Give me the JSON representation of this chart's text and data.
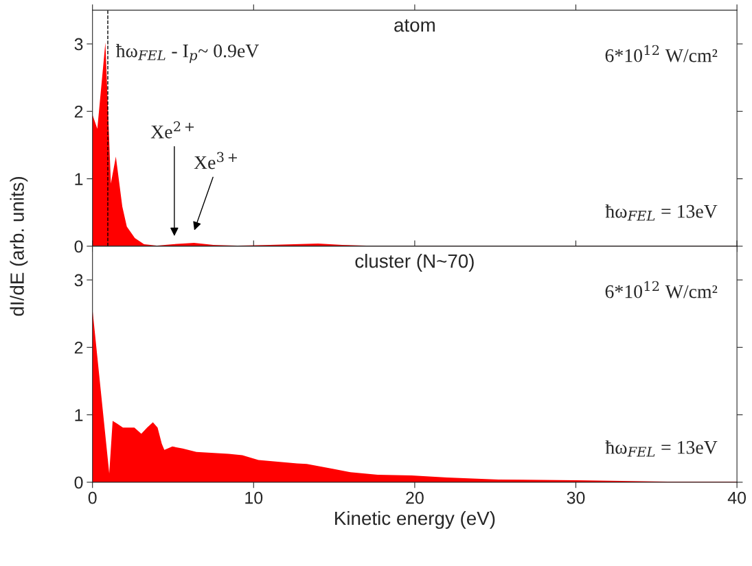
{
  "chart_data": [
    {
      "type": "area",
      "title": "atom",
      "ylabel": "dI/dE (arb. units)",
      "xlim": [
        0,
        40
      ],
      "xticks": [
        0,
        10,
        20,
        30,
        40
      ],
      "ylim": [
        0,
        3.5
      ],
      "yticks": [
        0,
        1,
        2,
        3
      ],
      "tick_labels": "y",
      "series": [
        {
          "color": "#ff0000",
          "x": [
            0,
            0.3,
            0.8,
            1.14,
            1.45,
            1.85,
            2.13,
            2.63,
            3.2,
            4.0,
            5.0,
            6.3,
            7.5,
            9,
            11,
            12.5,
            14,
            15.5,
            17,
            20,
            25,
            30,
            35,
            40
          ],
          "values": [
            1.95,
            1.74,
            3.02,
            0.93,
            1.33,
            0.59,
            0.29,
            0.12,
            0.03,
            0.01,
            0.03,
            0.05,
            0.02,
            0.01,
            0.02,
            0.03,
            0.04,
            0.02,
            0.01,
            0.01,
            0.01,
            0.01,
            0.01,
            0.01
          ]
        }
      ],
      "ref_lines": [
        {
          "axis": "x",
          "value": 0.95,
          "label": "ħω$_{FEL}$ - I$_{p}$~ 0.9eV",
          "color": "#000000",
          "line_style": "dashed"
        }
      ],
      "annotations": [
        "6*10$^{12}$ W/cm²",
        "ħω$_{FEL}$ = 13eV",
        "Xe$^{2+}$",
        "Xe$^{3+}$"
      ]
    },
    {
      "type": "area",
      "title": "cluster (N~70)",
      "xlabel": "Kinetic energy (eV)",
      "xlim": [
        0,
        40
      ],
      "xticks": [
        0,
        10,
        20,
        30,
        40
      ],
      "ylim": [
        0,
        3.5
      ],
      "yticks": [
        0,
        1,
        2,
        3
      ],
      "series": [
        {
          "color": "#ff0000",
          "x": [
            0,
            1.04,
            1.25,
            1.53,
            1.89,
            2.6,
            3.03,
            3.39,
            3.75,
            4.04,
            4.3,
            4.46,
            4.96,
            5.6,
            6.45,
            8.45,
            9.3,
            10.3,
            12.7,
            13.3,
            14.9,
            16.0,
            17.7,
            19.8,
            22,
            25.2,
            30,
            35.7,
            40
          ],
          "values": [
            2.56,
            0.13,
            0.91,
            0.87,
            0.81,
            0.81,
            0.72,
            0.81,
            0.89,
            0.81,
            0.57,
            0.48,
            0.53,
            0.5,
            0.45,
            0.42,
            0.4,
            0.33,
            0.28,
            0.27,
            0.2,
            0.15,
            0.11,
            0.1,
            0.07,
            0.04,
            0.03,
            0.01,
            0.01
          ]
        }
      ],
      "annotations": [
        "6*10$^{12}$ W/cm²",
        "ħω$_{FEL}$ = 13eV"
      ]
    }
  ]
}
